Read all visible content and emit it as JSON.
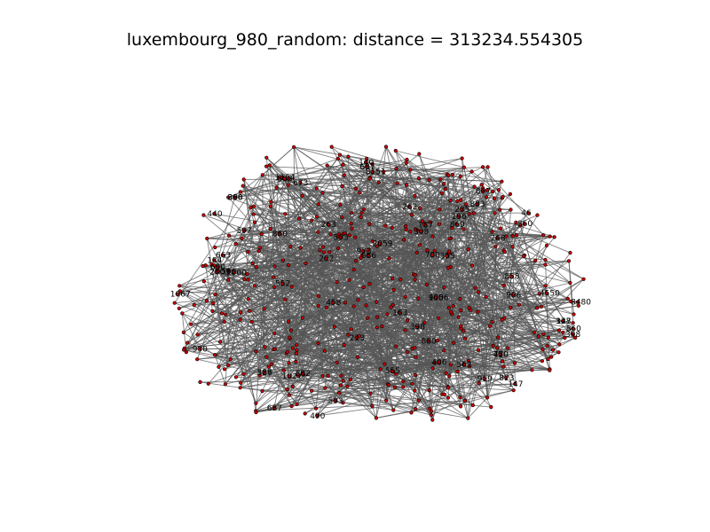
{
  "figure": {
    "title": "luxembourg_980_random: distance = 313234.554305",
    "edge_color": "#555555",
    "node_color": "#cc0000",
    "node_outline": "#000000"
  },
  "graph": {
    "labels": [
      "8151",
      "1164",
      "563",
      "398",
      "100",
      "328",
      "308",
      "768",
      "46",
      "919",
      "387",
      "1027",
      "147",
      "147",
      "770",
      "686",
      "906",
      "905",
      "663",
      "398",
      "536",
      "930",
      "163",
      "140",
      "687",
      "687",
      "897",
      "823",
      "860",
      "860",
      "8480",
      "4550",
      "2059",
      "553",
      "593",
      "398",
      "458",
      "406",
      "880",
      "597",
      "883",
      "860",
      "860",
      "263",
      "202",
      "187",
      "184",
      "858",
      "882",
      "1067",
      "973",
      "1006",
      "552",
      "673",
      "45",
      "2803",
      "196",
      "1000",
      "440",
      "500",
      "235",
      "355",
      "555",
      "262",
      "213",
      "593",
      "700",
      "490",
      "690",
      "880"
    ]
  }
}
